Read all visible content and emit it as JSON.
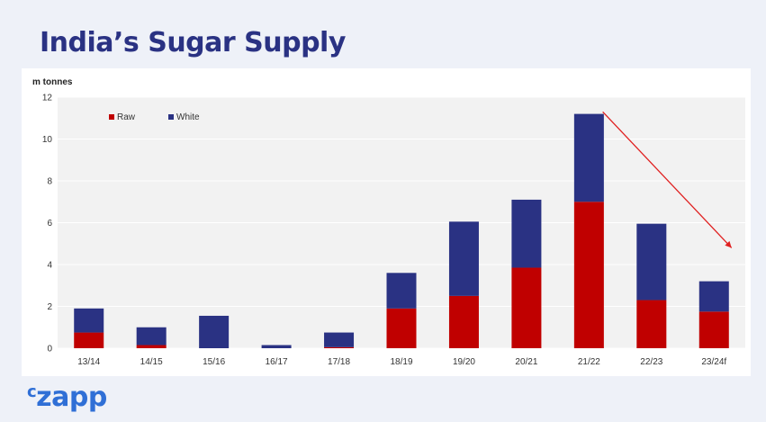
{
  "title": "India’s Sugar Supply",
  "logo": "czapp",
  "chart_data": {
    "type": "bar",
    "stacked": true,
    "title": "",
    "xlabel": "",
    "ylabel": "m tonnes",
    "ylim": [
      0,
      12
    ],
    "yticks": [
      0,
      2,
      4,
      6,
      8,
      10,
      12
    ],
    "grid": true,
    "legend_position": "top-left",
    "categories": [
      "13/14",
      "14/15",
      "15/16",
      "16/17",
      "17/18",
      "18/19",
      "19/20",
      "20/21",
      "21/22",
      "22/23",
      "23/24f"
    ],
    "series": [
      {
        "name": "Raw",
        "color": "#c00000",
        "values": [
          0.75,
          0.15,
          0.0,
          0.0,
          0.05,
          1.9,
          2.5,
          3.85,
          7.0,
          2.3,
          1.75
        ]
      },
      {
        "name": "White",
        "color": "#2a3283",
        "values": [
          1.15,
          0.85,
          1.55,
          0.15,
          0.7,
          1.7,
          3.55,
          3.25,
          4.2,
          3.65,
          1.45
        ]
      }
    ],
    "annotation": {
      "type": "arrow",
      "color": "#e02020",
      "from": [
        "21/22",
        11.3
      ],
      "to": [
        "23/24f",
        4.8
      ]
    }
  }
}
